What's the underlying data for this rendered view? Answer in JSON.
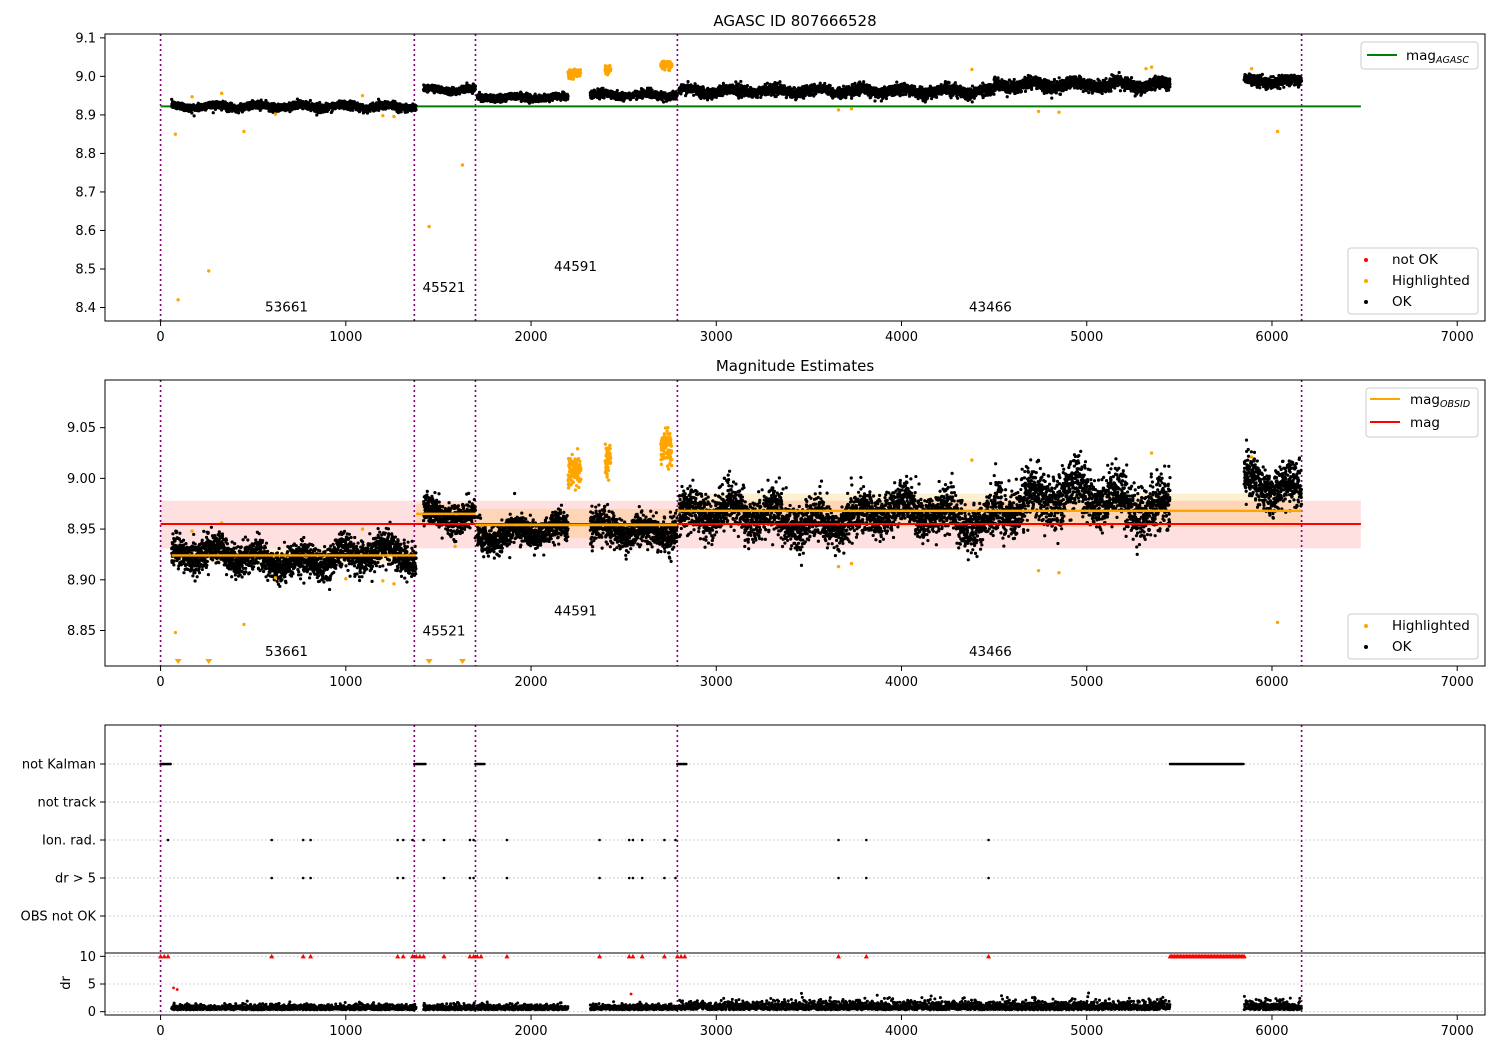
{
  "chart_data": [
    {
      "type": "scatter",
      "title": "AGASC ID 807666528",
      "xlim": [
        -300,
        7150
      ],
      "ylim": [
        8.365,
        9.11
      ],
      "xticks": [
        0,
        1000,
        2000,
        3000,
        4000,
        5000,
        6000,
        7000
      ],
      "yticks": [
        8.4,
        8.5,
        8.6,
        8.7,
        8.8,
        8.9,
        9.0,
        9.1
      ],
      "vlines": [
        0,
        1370,
        1700,
        2790,
        6160
      ],
      "observation_labels": [
        {
          "text": "53661",
          "x": 680,
          "y": 8.39
        },
        {
          "text": "45521",
          "x": 1530,
          "y": 8.44
        },
        {
          "text": "44591",
          "x": 2240,
          "y": 8.495
        },
        {
          "text": "43466",
          "x": 4480,
          "y": 8.39
        }
      ],
      "hlines": [
        {
          "name": "mag",
          "sub": "AGASC",
          "y": 8.922,
          "x": [
            0,
            6480
          ],
          "color": "#008000"
        }
      ],
      "segments": [
        {
          "x": [
            60,
            1380
          ],
          "mean": 8.922,
          "sd": 0.009
        },
        {
          "x": [
            1420,
            1700
          ],
          "mean": 8.966,
          "sd": 0.008
        },
        {
          "x": [
            1710,
            2200
          ],
          "mean": 8.945,
          "sd": 0.008
        },
        {
          "x": [
            2320,
            2790
          ],
          "mean": 8.952,
          "sd": 0.009
        },
        {
          "x": [
            2800,
            4500
          ],
          "mean": 8.962,
          "sd": 0.012
        },
        {
          "x": [
            4500,
            5450
          ],
          "mean": 8.978,
          "sd": 0.014
        },
        {
          "x": [
            5850,
            6160
          ],
          "mean": 8.988,
          "sd": 0.012
        }
      ],
      "highlighted_clusters": [
        {
          "x": [
            2200,
            2270
          ],
          "mean": 9.007,
          "sd": 0.008
        },
        {
          "x": [
            2400,
            2430
          ],
          "mean": 9.017,
          "sd": 0.008
        },
        {
          "x": [
            2700,
            2760
          ],
          "mean": 9.03,
          "sd": 0.008
        }
      ],
      "highlighted": [
        {
          "x": 80,
          "y": 8.85
        },
        {
          "x": 95,
          "y": 8.42
        },
        {
          "x": 260,
          "y": 8.495
        },
        {
          "x": 450,
          "y": 8.857
        },
        {
          "x": 1450,
          "y": 8.61
        },
        {
          "x": 1630,
          "y": 8.77
        },
        {
          "x": 6030,
          "y": 8.857
        },
        {
          "x": 4740,
          "y": 8.909
        },
        {
          "x": 4850,
          "y": 8.907
        },
        {
          "x": 3660,
          "y": 8.913
        },
        {
          "x": 3730,
          "y": 8.916
        },
        {
          "x": 4380,
          "y": 9.018
        },
        {
          "x": 5320,
          "y": 9.02
        },
        {
          "x": 5350,
          "y": 9.024
        },
        {
          "x": 5890,
          "y": 9.02
        },
        {
          "x": 170,
          "y": 8.947
        },
        {
          "x": 330,
          "y": 8.956
        },
        {
          "x": 1090,
          "y": 8.95
        },
        {
          "x": 1200,
          "y": 8.898
        },
        {
          "x": 1260,
          "y": 8.896
        },
        {
          "x": 620,
          "y": 8.902
        }
      ],
      "legend_lines": [
        {
          "label": "mag",
          "sub": "AGASC",
          "color": "#008000"
        }
      ],
      "legend_markers": [
        {
          "label": "not OK",
          "color": "#ff0000"
        },
        {
          "label": "Highlighted",
          "color": "#ffa500"
        },
        {
          "label": "OK",
          "color": "#000000"
        }
      ]
    },
    {
      "type": "scatter",
      "title": "Magnitude Estimates",
      "xlim": [
        -300,
        7150
      ],
      "ylim": [
        8.815,
        9.097
      ],
      "xticks": [
        0,
        1000,
        2000,
        3000,
        4000,
        5000,
        6000,
        7000
      ],
      "yticks": [
        8.85,
        8.9,
        8.95,
        9.0,
        9.05
      ],
      "vlines": [
        0,
        1370,
        1700,
        2790,
        6160
      ],
      "observation_labels": [
        {
          "text": "53661",
          "x": 680,
          "y": 8.825
        },
        {
          "text": "45521",
          "x": 1530,
          "y": 8.845
        },
        {
          "text": "44591",
          "x": 2240,
          "y": 8.865
        },
        {
          "text": "43466",
          "x": 4480,
          "y": 8.825
        }
      ],
      "mag": {
        "y": 8.955,
        "band": [
          8.931,
          8.978
        ],
        "x": [
          0,
          6480
        ],
        "color": "#ff0000"
      },
      "mag_obsid": [
        {
          "x": [
            60,
            1380
          ],
          "y": 8.924,
          "band": [
            8.917,
            8.931
          ]
        },
        {
          "x": [
            1380,
            1700
          ],
          "y": 8.965,
          "band": [
            8.955,
            8.975
          ]
        },
        {
          "x": [
            1700,
            2790
          ],
          "y": 8.954,
          "band": [
            8.941,
            8.97
          ]
        },
        {
          "x": [
            2790,
            6160
          ],
          "y": 8.968,
          "band": [
            8.952,
            8.985
          ]
        }
      ],
      "highlighted": [
        {
          "x": 80,
          "y": 8.848
        },
        {
          "x": 450,
          "y": 8.856
        },
        {
          "x": 6030,
          "y": 8.858
        },
        {
          "x": 4740,
          "y": 8.909
        },
        {
          "x": 4850,
          "y": 8.907
        },
        {
          "x": 3660,
          "y": 8.913
        },
        {
          "x": 3730,
          "y": 8.916
        },
        {
          "x": 4380,
          "y": 9.018
        },
        {
          "x": 5350,
          "y": 9.025
        },
        {
          "x": 5890,
          "y": 9.021
        },
        {
          "x": 170,
          "y": 8.948
        },
        {
          "x": 330,
          "y": 8.956
        },
        {
          "x": 1090,
          "y": 8.95
        },
        {
          "x": 1200,
          "y": 8.899
        },
        {
          "x": 1260,
          "y": 8.896
        },
        {
          "x": 620,
          "y": 8.902
        },
        {
          "x": 1000,
          "y": 8.901
        },
        {
          "x": 1590,
          "y": 8.933
        }
      ],
      "below_range_markers": [
        95,
        260,
        1450,
        1630
      ],
      "legend_lines": [
        {
          "label": "mag",
          "sub": "OBSID",
          "color": "#ffa500"
        },
        {
          "label": "mag",
          "sub": "",
          "color": "#ff0000"
        }
      ],
      "legend_markers": [
        {
          "label": "Highlighted",
          "color": "#ffa500"
        },
        {
          "label": "OK",
          "color": "#000000"
        }
      ]
    },
    {
      "type": "scatter",
      "xlim": [
        -300,
        7150
      ],
      "xticks": [
        0,
        1000,
        2000,
        3000,
        4000,
        5000,
        6000,
        7000
      ],
      "vlines": [
        0,
        1370,
        1700,
        2790,
        6160
      ],
      "flag_categories": [
        "not Kalman",
        "not track",
        "Ion. rad.",
        "dr > 5",
        "OBS not OK"
      ],
      "flags": {
        "not Kalman_ranges": [
          [
            0,
            55
          ],
          [
            1370,
            1430
          ],
          [
            1700,
            1750
          ],
          [
            2790,
            2840
          ],
          [
            5450,
            5850
          ]
        ],
        "Ion. rad.": [
          40,
          600,
          770,
          810,
          1280,
          1310,
          1360,
          1420,
          1530,
          1670,
          1690,
          1870,
          2370,
          2530,
          2550,
          2600,
          2720,
          2780,
          3660,
          3810,
          4470
        ],
        "dr > 5": [
          600,
          770,
          810,
          1280,
          1310,
          1530,
          1670,
          1690,
          1870,
          2370,
          2530,
          2550,
          2600,
          2720,
          2780,
          3660,
          3810,
          4470
        ]
      },
      "dr": {
        "ylabel": "dr",
        "yticks": [
          0,
          5,
          10
        ],
        "ylim": [
          -0.6,
          10.6
        ],
        "capped_at": 10,
        "capped_x": [
          0,
          20,
          40,
          600,
          770,
          810,
          1280,
          1310,
          1360,
          1380,
          1400,
          1420,
          1530,
          1670,
          1690,
          1710,
          1730,
          1870,
          2370,
          2530,
          2550,
          2600,
          2720,
          2790,
          2810,
          2830,
          3660,
          3810,
          4470
        ],
        "capped_range": [
          5450,
          5850
        ],
        "outliers": [
          {
            "x": 70,
            "y": 4.3
          },
          {
            "x": 90,
            "y": 4.0
          },
          {
            "x": 2540,
            "y": 3.2
          }
        ]
      }
    }
  ]
}
